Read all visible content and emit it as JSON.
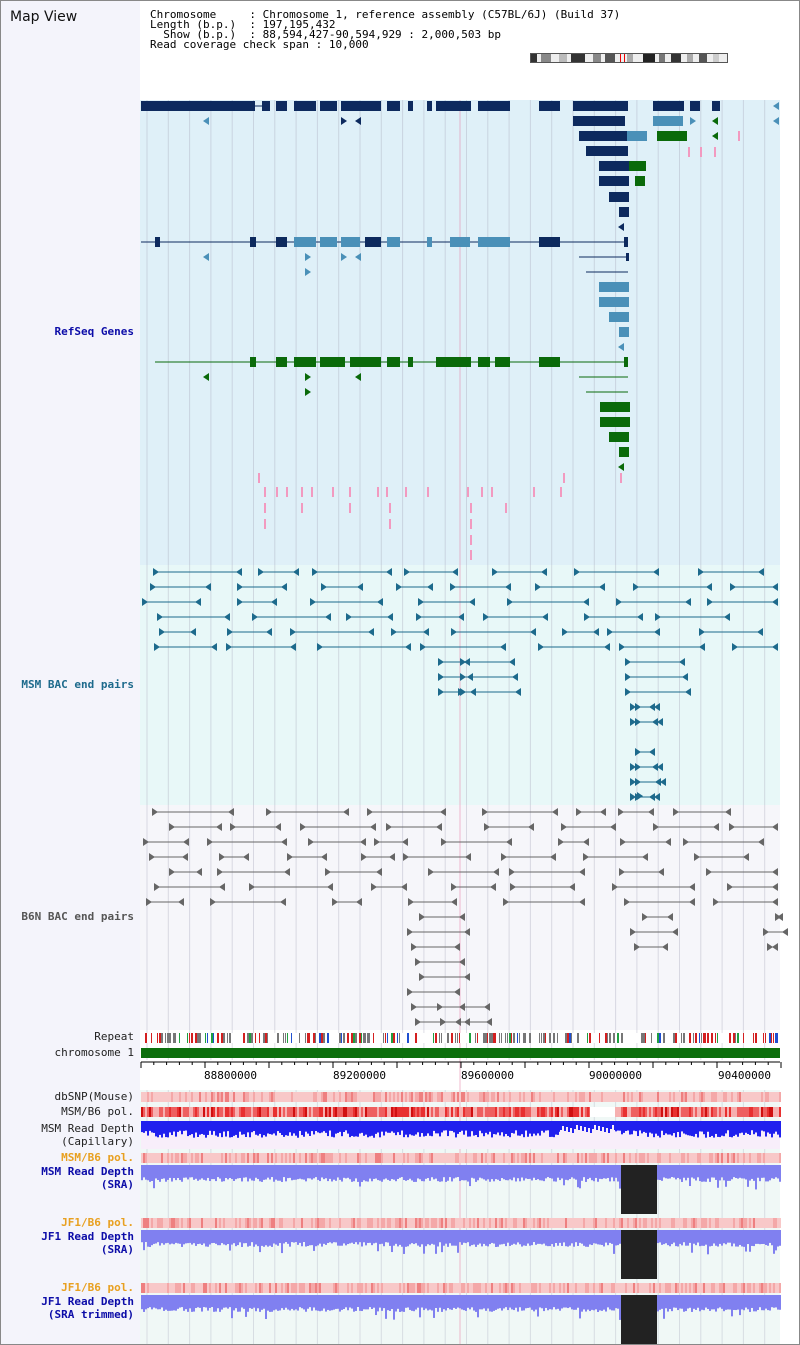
{
  "title": "Map View",
  "info": {
    "chromosome_label": "Chromosome",
    "chromosome_value": "Chromosome 1, reference assembly (C57BL/6J) (Build 37)",
    "length_label": "Length (b.p.)",
    "length_value": "197,195,432",
    "show_label": "Show (b.p.)",
    "show_value": "88,594,427-90,594,929 : 2,000,503 bp",
    "coverage_label": "Read coverage check span",
    "coverage_value": "10,000"
  },
  "tracks": {
    "refseq": "RefSeq Genes",
    "msm_bac": "MSM BAC end pairs",
    "b6n_bac": "B6N BAC end pairs",
    "repeat": "Repeat",
    "chromosome": "chromosome 1",
    "dbsnp": "dbSNP(Mouse)",
    "msm_b6_pol1": "MSM/B6 pol.",
    "msm_depth_cap_1": "MSM Read Depth",
    "msm_depth_cap_2": "(Capillary)",
    "msm_b6_pol2": "MSM/B6 pol.",
    "msm_depth_sra_1": "MSM Read Depth",
    "msm_depth_sra_2": "(SRA)",
    "jf1_b6_pol1": "JF1/B6 pol.",
    "jf1_depth_sra_1": "JF1 Read Depth",
    "jf1_depth_sra_2": "(SRA)",
    "jf1_b6_pol2": "JF1/B6 pol.",
    "jf1_depth_trim_1": "JF1 Read Depth",
    "jf1_depth_trim_2": "(SRA trimmed)"
  },
  "axis_ticks": [
    "88800000",
    "89200000",
    "89600000",
    "90000000",
    "90400000"
  ],
  "colors": {
    "refseq_bg": "#dff0f8",
    "msm_bg": "#e8f8f8",
    "b6n_bg": "#f6f6fa",
    "navy": "#0d2a5e",
    "teal": "#4a90b8",
    "green": "#0a6a0a",
    "pink": "#f29ac0",
    "bac_msm": "#1d6a8c",
    "bac_b6n": "#666666",
    "chrom": "#0c6e0c",
    "depth_capillary": "#2020ee",
    "depth_sra": "#8080f0",
    "gap": "#222222"
  }
}
